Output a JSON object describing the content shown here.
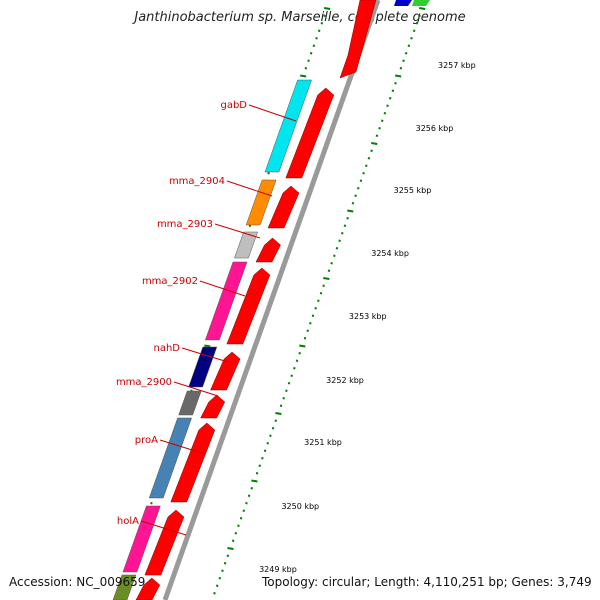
{
  "title": "Janthinobacterium sp. Marseille, complete genome",
  "footer": {
    "accession": "Accession: NC_009659",
    "summary": "Topology: circular; Length: 4,110,251 bp; Genes: 3,749"
  },
  "colors": {
    "backbone": "#9a9a9a",
    "cds_strand": "#ff0000",
    "tick": "#008000",
    "label": "#cc0000"
  },
  "scale_ticks": [
    "3257 kbp",
    "3256 kbp",
    "3255 kbp",
    "3254 kbp",
    "3253 kbp",
    "3252 kbp",
    "3251 kbp",
    "3250 kbp",
    "3249 kbp"
  ],
  "genes": [
    {
      "name": "gabD",
      "color": "#00e5ee"
    },
    {
      "name": "mma_2904",
      "color": "#ff8c00"
    },
    {
      "name": "mma_2903",
      "color": "#bebebe"
    },
    {
      "name": "mma_2902",
      "color": "#ff1493"
    },
    {
      "name": "nahD",
      "color": "#000080"
    },
    {
      "name": "mma_2900",
      "color": "#696969"
    },
    {
      "name": "proA",
      "color": "#4682b4"
    },
    {
      "name": "holA",
      "color": "#ff1493"
    },
    {
      "name": "",
      "color": "#6b8e23"
    }
  ],
  "top_genes": [
    {
      "color": "#ff0000"
    },
    {
      "color": "#0000cd"
    },
    {
      "color": "#32cd32"
    }
  ]
}
